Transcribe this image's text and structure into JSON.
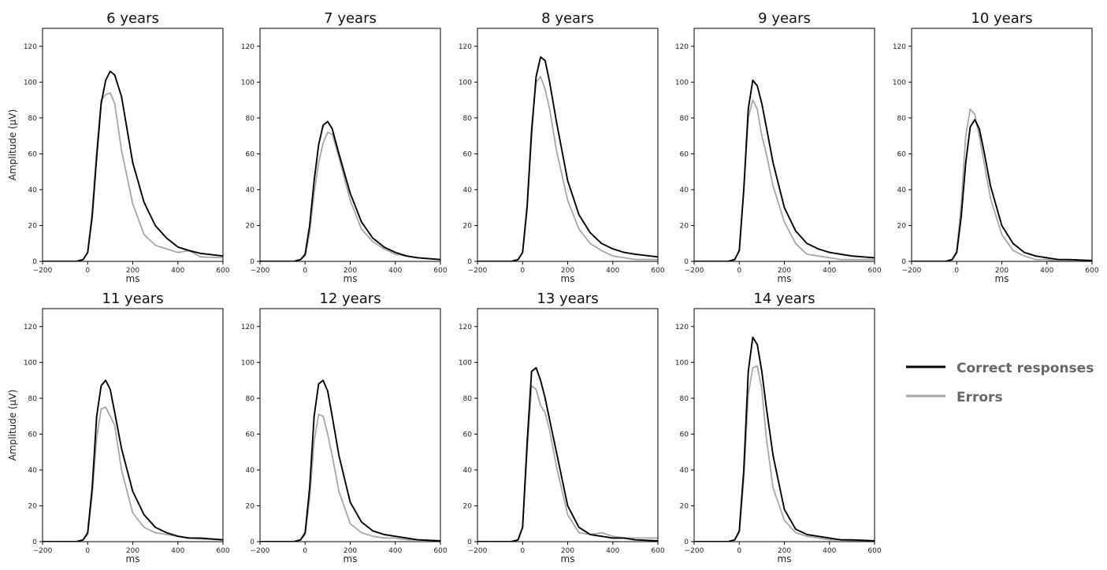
{
  "legend": {
    "placement": "right",
    "items": [
      {
        "label": "Correct responses",
        "color": "#000000"
      },
      {
        "label": "Errors",
        "color": "#a6a6a6"
      }
    ]
  },
  "chart_data": [
    {
      "type": "line",
      "title": "6 years",
      "xlabel": "ms",
      "ylabel": "Amplitude (μV)",
      "xlim": [
        -200,
        600
      ],
      "ylim": [
        0,
        130
      ],
      "xticks": [
        -200,
        0,
        200,
        400,
        600
      ],
      "yticks": [
        0,
        20,
        40,
        60,
        80,
        100,
        120
      ],
      "series": [
        {
          "name": "Correct responses",
          "color": "#000000",
          "x": [
            -200,
            -50,
            -20,
            0,
            20,
            40,
            60,
            80,
            100,
            120,
            150,
            200,
            250,
            300,
            350,
            400,
            450,
            500,
            600
          ],
          "y": [
            0,
            0,
            1,
            5,
            25,
            58,
            88,
            101,
            106,
            104,
            92,
            55,
            33,
            20,
            13,
            8,
            6,
            4.5,
            3
          ]
        },
        {
          "name": "Errors",
          "color": "#a6a6a6",
          "x": [
            -200,
            -50,
            -20,
            0,
            20,
            40,
            60,
            80,
            100,
            120,
            150,
            200,
            250,
            300,
            350,
            400,
            450,
            500,
            600
          ],
          "y": [
            0,
            0,
            1,
            5,
            28,
            62,
            90,
            93,
            94,
            88,
            62,
            32,
            15,
            9,
            7,
            5,
            6,
            2.5,
            2
          ]
        }
      ]
    },
    {
      "type": "line",
      "title": "7 years",
      "xlabel": "ms",
      "ylabel": "",
      "xlim": [
        -200,
        600
      ],
      "ylim": [
        0,
        130
      ],
      "xticks": [
        -200,
        0,
        200,
        400,
        600
      ],
      "yticks": [
        0,
        20,
        40,
        60,
        80,
        100,
        120
      ],
      "series": [
        {
          "name": "Correct responses",
          "color": "#000000",
          "x": [
            -200,
            -50,
            -20,
            0,
            20,
            40,
            60,
            80,
            100,
            120,
            150,
            200,
            250,
            300,
            350,
            400,
            450,
            500,
            600
          ],
          "y": [
            0,
            0,
            1,
            4,
            20,
            45,
            65,
            76,
            78,
            74,
            60,
            38,
            22,
            13,
            8,
            5,
            3,
            2,
            1
          ]
        },
        {
          "name": "Errors",
          "color": "#a6a6a6",
          "x": [
            -200,
            -50,
            -20,
            0,
            20,
            40,
            60,
            80,
            100,
            120,
            150,
            200,
            250,
            300,
            350,
            400,
            450,
            500,
            600
          ],
          "y": [
            0,
            0,
            1,
            3,
            16,
            38,
            55,
            66,
            72,
            71,
            58,
            34,
            18,
            11,
            7,
            4,
            3,
            2,
            1
          ]
        }
      ]
    },
    {
      "type": "line",
      "title": "8 years",
      "xlabel": "ms",
      "ylabel": "",
      "xlim": [
        -200,
        600
      ],
      "ylim": [
        0,
        130
      ],
      "xticks": [
        -200,
        0,
        200,
        400,
        600
      ],
      "yticks": [
        0,
        20,
        40,
        60,
        80,
        100,
        120
      ],
      "series": [
        {
          "name": "Correct responses",
          "color": "#000000",
          "x": [
            -200,
            -50,
            -20,
            0,
            20,
            40,
            60,
            80,
            100,
            120,
            150,
            200,
            250,
            300,
            350,
            400,
            450,
            500,
            600
          ],
          "y": [
            0,
            0,
            1,
            5,
            30,
            72,
            103,
            114,
            112,
            100,
            78,
            45,
            26,
            16,
            10,
            7,
            5,
            4,
            2.5
          ]
        },
        {
          "name": "Errors",
          "color": "#a6a6a6",
          "x": [
            -200,
            -50,
            -20,
            0,
            20,
            40,
            60,
            80,
            100,
            120,
            150,
            200,
            250,
            300,
            350,
            400,
            450,
            500,
            600
          ],
          "y": [
            0,
            0,
            1,
            5,
            32,
            75,
            100,
            103,
            96,
            85,
            62,
            34,
            18,
            10,
            6,
            3,
            2,
            1,
            1
          ]
        }
      ]
    },
    {
      "type": "line",
      "title": "9 years",
      "xlabel": "ms",
      "ylabel": "",
      "xlim": [
        -200,
        600
      ],
      "ylim": [
        0,
        130
      ],
      "xticks": [
        -200,
        0,
        200,
        400,
        600
      ],
      "yticks": [
        0,
        20,
        40,
        60,
        80,
        100,
        120
      ],
      "series": [
        {
          "name": "Correct responses",
          "color": "#000000",
          "x": [
            -200,
            -50,
            -20,
            0,
            20,
            40,
            60,
            80,
            100,
            120,
            150,
            200,
            250,
            300,
            350,
            400,
            450,
            500,
            600
          ],
          "y": [
            0,
            0,
            1,
            6,
            40,
            85,
            101,
            98,
            88,
            75,
            55,
            30,
            17,
            10,
            7,
            5,
            4,
            3,
            2
          ]
        },
        {
          "name": "Errors",
          "color": "#a6a6a6",
          "x": [
            -200,
            -50,
            -20,
            0,
            20,
            40,
            60,
            80,
            100,
            120,
            150,
            200,
            250,
            300,
            350,
            400,
            450,
            500,
            600
          ],
          "y": [
            0,
            0,
            1,
            6,
            40,
            80,
            90,
            85,
            70,
            60,
            42,
            22,
            10,
            4,
            3,
            2,
            1,
            1,
            1
          ]
        }
      ]
    },
    {
      "type": "line",
      "title": "10 years",
      "xlabel": "ms",
      "ylabel": "",
      "xlim": [
        -200,
        600
      ],
      "ylim": [
        0,
        130
      ],
      "xticks": [
        -200,
        0,
        200,
        400,
        600
      ],
      "yticks": [
        0,
        20,
        40,
        60,
        80,
        100,
        120
      ],
      "series": [
        {
          "name": "Correct responses",
          "color": "#000000",
          "x": [
            -200,
            -50,
            -20,
            0,
            20,
            40,
            60,
            80,
            100,
            120,
            150,
            200,
            250,
            300,
            350,
            400,
            450,
            500,
            600
          ],
          "y": [
            0,
            0,
            1,
            5,
            25,
            55,
            75,
            79,
            74,
            62,
            42,
            20,
            10,
            5,
            3,
            2,
            1,
            1,
            0.5
          ]
        },
        {
          "name": "Errors",
          "color": "#a6a6a6",
          "x": [
            -200,
            -50,
            -20,
            0,
            20,
            40,
            60,
            80,
            100,
            120,
            150,
            200,
            250,
            300,
            350,
            400,
            450,
            500,
            600
          ],
          "y": [
            0,
            0,
            1,
            6,
            32,
            70,
            85,
            82,
            70,
            56,
            35,
            15,
            6,
            3,
            1,
            1,
            0,
            0,
            0
          ]
        }
      ]
    },
    {
      "type": "line",
      "title": "11 years",
      "xlabel": "ms",
      "ylabel": "Amplitude (μV)",
      "xlim": [
        -200,
        600
      ],
      "ylim": [
        0,
        130
      ],
      "xticks": [
        -200,
        0,
        200,
        400,
        600
      ],
      "yticks": [
        0,
        20,
        40,
        60,
        80,
        100,
        120
      ],
      "series": [
        {
          "name": "Correct responses",
          "color": "#000000",
          "x": [
            -200,
            -50,
            -20,
            0,
            20,
            40,
            60,
            80,
            100,
            120,
            150,
            200,
            250,
            300,
            350,
            400,
            450,
            500,
            600
          ],
          "y": [
            0,
            0,
            1,
            5,
            30,
            70,
            87,
            90,
            85,
            72,
            52,
            28,
            15,
            8,
            5,
            3,
            2,
            2,
            1
          ]
        },
        {
          "name": "Errors",
          "color": "#a6a6a6",
          "x": [
            -200,
            -50,
            -20,
            0,
            20,
            40,
            60,
            80,
            100,
            120,
            150,
            200,
            250,
            300,
            350,
            400,
            450,
            500,
            600
          ],
          "y": [
            0,
            0,
            1,
            4,
            26,
            58,
            74,
            75,
            70,
            65,
            40,
            16,
            8,
            5,
            4,
            3,
            2,
            1.5,
            1
          ]
        }
      ]
    },
    {
      "type": "line",
      "title": "12 years",
      "xlabel": "ms",
      "ylabel": "",
      "xlim": [
        -200,
        600
      ],
      "ylim": [
        0,
        130
      ],
      "xticks": [
        -200,
        0,
        200,
        400,
        600
      ],
      "yticks": [
        0,
        20,
        40,
        60,
        80,
        100,
        120
      ],
      "series": [
        {
          "name": "Correct responses",
          "color": "#000000",
          "x": [
            -200,
            -50,
            -20,
            0,
            20,
            40,
            60,
            80,
            100,
            120,
            150,
            200,
            250,
            300,
            350,
            400,
            450,
            500,
            600
          ],
          "y": [
            0,
            0,
            1,
            5,
            30,
            70,
            88,
            90,
            84,
            70,
            48,
            22,
            11,
            6,
            4,
            3,
            2,
            1,
            0.5
          ]
        },
        {
          "name": "Errors",
          "color": "#a6a6a6",
          "x": [
            -200,
            -50,
            -20,
            0,
            20,
            40,
            60,
            80,
            100,
            120,
            150,
            200,
            250,
            300,
            350,
            400,
            450,
            500,
            600
          ],
          "y": [
            0,
            0,
            1,
            4,
            24,
            56,
            71,
            70,
            60,
            48,
            28,
            10,
            5,
            3,
            2,
            2,
            1,
            1,
            0.5
          ]
        }
      ]
    },
    {
      "type": "line",
      "title": "13 years",
      "xlabel": "ms",
      "ylabel": "",
      "xlim": [
        -200,
        600
      ],
      "ylim": [
        0,
        130
      ],
      "xticks": [
        -200,
        0,
        200,
        400,
        600
      ],
      "yticks": [
        0,
        20,
        40,
        60,
        80,
        100,
        120
      ],
      "series": [
        {
          "name": "Correct responses",
          "color": "#000000",
          "x": [
            -200,
            -50,
            -20,
            0,
            20,
            40,
            60,
            80,
            100,
            120,
            150,
            200,
            250,
            300,
            350,
            400,
            450,
            500,
            600
          ],
          "y": [
            0,
            0,
            1,
            8,
            55,
            95,
            97,
            90,
            80,
            68,
            50,
            20,
            8,
            4,
            3,
            2,
            2,
            1,
            0.5
          ]
        },
        {
          "name": "Errors",
          "color": "#a6a6a6",
          "x": [
            -200,
            -50,
            -20,
            0,
            20,
            40,
            60,
            80,
            100,
            120,
            150,
            200,
            250,
            300,
            350,
            400,
            450,
            500,
            600
          ],
          "y": [
            0,
            0,
            1,
            8,
            50,
            87,
            85,
            76,
            72,
            62,
            42,
            15,
            5,
            4,
            5,
            3,
            2,
            2,
            2
          ]
        }
      ]
    },
    {
      "type": "line",
      "title": "14 years",
      "xlabel": "ms",
      "ylabel": "",
      "xlim": [
        -200,
        600
      ],
      "ylim": [
        0,
        130
      ],
      "xticks": [
        -200,
        0,
        200,
        400,
        600
      ],
      "yticks": [
        0,
        20,
        40,
        60,
        80,
        100,
        120
      ],
      "series": [
        {
          "name": "Correct responses",
          "color": "#000000",
          "x": [
            -200,
            -50,
            -20,
            0,
            20,
            40,
            60,
            80,
            100,
            120,
            150,
            200,
            250,
            300,
            350,
            400,
            450,
            500,
            600
          ],
          "y": [
            0,
            0,
            1,
            6,
            40,
            95,
            114,
            110,
            95,
            75,
            48,
            18,
            7,
            4,
            3,
            2,
            1,
            1,
            0.5
          ]
        },
        {
          "name": "Errors",
          "color": "#a6a6a6",
          "x": [
            -200,
            -50,
            -20,
            0,
            20,
            40,
            60,
            80,
            100,
            120,
            150,
            200,
            250,
            300,
            350,
            400,
            450,
            500,
            600
          ],
          "y": [
            0,
            0,
            1,
            5,
            35,
            82,
            97,
            98,
            85,
            58,
            30,
            12,
            5,
            3,
            2,
            1,
            1,
            0.5,
            0
          ]
        }
      ]
    }
  ]
}
